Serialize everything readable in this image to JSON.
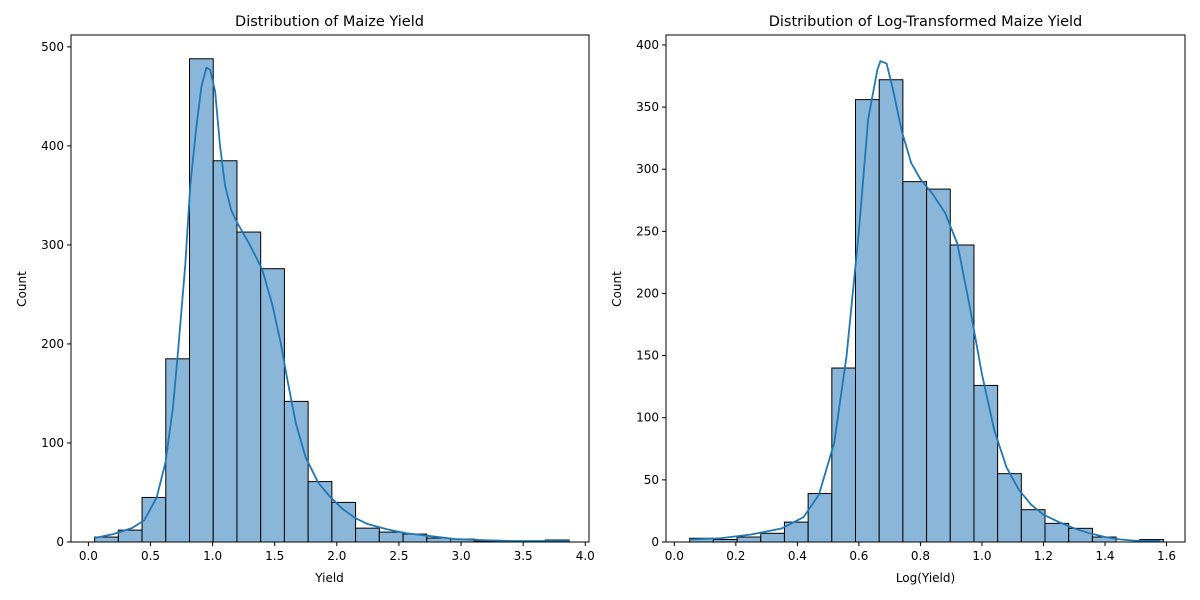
{
  "chart_data": [
    {
      "type": "bar",
      "title": "Distribution of Maize Yield",
      "xlabel": "Yield",
      "ylabel": "Count",
      "xlim": [
        -0.14,
        4.03
      ],
      "ylim": [
        0,
        512
      ],
      "xticks": [
        0.0,
        0.5,
        1.0,
        1.5,
        2.0,
        2.5,
        3.0,
        3.5,
        4.0
      ],
      "xtick_labels": [
        "0.0",
        "0.5",
        "1.0",
        "1.5",
        "2.0",
        "2.5",
        "3.0",
        "3.5",
        "4.0"
      ],
      "yticks": [
        0,
        100,
        200,
        300,
        400,
        500
      ],
      "ytick_labels": [
        "0",
        "100",
        "200",
        "300",
        "400",
        "500"
      ],
      "bin_start": 0.05,
      "bin_width": 0.191,
      "counts": [
        5,
        12,
        45,
        185,
        488,
        385,
        313,
        276,
        142,
        61,
        40,
        14,
        10,
        8,
        4,
        3,
        1,
        1,
        1,
        2
      ],
      "kde": [
        [
          0.05,
          4
        ],
        [
          0.2,
          8
        ],
        [
          0.35,
          14
        ],
        [
          0.45,
          22
        ],
        [
          0.55,
          45
        ],
        [
          0.62,
          80
        ],
        [
          0.68,
          135
        ],
        [
          0.72,
          190
        ],
        [
          0.78,
          280
        ],
        [
          0.82,
          360
        ],
        [
          0.87,
          420
        ],
        [
          0.91,
          460
        ],
        [
          0.95,
          479
        ],
        [
          0.98,
          477
        ],
        [
          1.02,
          455
        ],
        [
          1.06,
          400
        ],
        [
          1.1,
          360
        ],
        [
          1.15,
          335
        ],
        [
          1.2,
          322
        ],
        [
          1.3,
          300
        ],
        [
          1.4,
          275
        ],
        [
          1.48,
          240
        ],
        [
          1.55,
          200
        ],
        [
          1.6,
          165
        ],
        [
          1.67,
          120
        ],
        [
          1.75,
          85
        ],
        [
          1.85,
          60
        ],
        [
          1.95,
          45
        ],
        [
          2.05,
          33
        ],
        [
          2.15,
          24
        ],
        [
          2.25,
          18
        ],
        [
          2.4,
          13
        ],
        [
          2.55,
          9
        ],
        [
          2.75,
          6
        ],
        [
          2.95,
          3
        ],
        [
          3.15,
          2
        ],
        [
          3.4,
          1
        ],
        [
          3.6,
          1
        ],
        [
          3.87,
          1
        ]
      ],
      "color": "#8ab7d9",
      "line_color": "#1f77b4"
    },
    {
      "type": "bar",
      "title": "Distribution of Log-Transformed Maize Yield",
      "xlabel": "Log(Yield)",
      "ylabel": "Count",
      "xlim": [
        -0.027,
        1.66
      ],
      "ylim": [
        0,
        408
      ],
      "xticks": [
        0.0,
        0.2,
        0.4,
        0.6,
        0.8,
        1.0,
        1.2,
        1.4,
        1.6
      ],
      "xtick_labels": [
        "0.0",
        "0.2",
        "0.4",
        "0.6",
        "0.8",
        "1.0",
        "1.2",
        "1.4",
        "1.6"
      ],
      "yticks": [
        0,
        50,
        100,
        150,
        200,
        250,
        300,
        350,
        400
      ],
      "ytick_labels": [
        "0",
        "50",
        "100",
        "150",
        "200",
        "250",
        "300",
        "350",
        "400"
      ],
      "bin_start": 0.05,
      "bin_width": 0.077,
      "counts": [
        3,
        2,
        4,
        7,
        16,
        39,
        140,
        356,
        372,
        290,
        284,
        239,
        126,
        55,
        26,
        15,
        11,
        4,
        0,
        2
      ],
      "kde": [
        [
          0.05,
          2
        ],
        [
          0.15,
          3
        ],
        [
          0.25,
          6
        ],
        [
          0.35,
          11
        ],
        [
          0.42,
          20
        ],
        [
          0.47,
          38
        ],
        [
          0.52,
          80
        ],
        [
          0.56,
          150
        ],
        [
          0.6,
          250
        ],
        [
          0.63,
          340
        ],
        [
          0.66,
          380
        ],
        [
          0.67,
          387
        ],
        [
          0.69,
          385
        ],
        [
          0.71,
          365
        ],
        [
          0.74,
          330
        ],
        [
          0.77,
          305
        ],
        [
          0.8,
          292
        ],
        [
          0.84,
          280
        ],
        [
          0.88,
          265
        ],
        [
          0.92,
          240
        ],
        [
          0.96,
          190
        ],
        [
          1.0,
          135
        ],
        [
          1.04,
          90
        ],
        [
          1.08,
          60
        ],
        [
          1.12,
          42
        ],
        [
          1.16,
          30
        ],
        [
          1.2,
          22
        ],
        [
          1.25,
          16
        ],
        [
          1.3,
          11
        ],
        [
          1.35,
          7
        ],
        [
          1.4,
          4
        ],
        [
          1.45,
          2
        ],
        [
          1.5,
          1
        ],
        [
          1.58,
          1
        ]
      ],
      "color": "#8ab7d9",
      "line_color": "#1f77b4"
    }
  ]
}
